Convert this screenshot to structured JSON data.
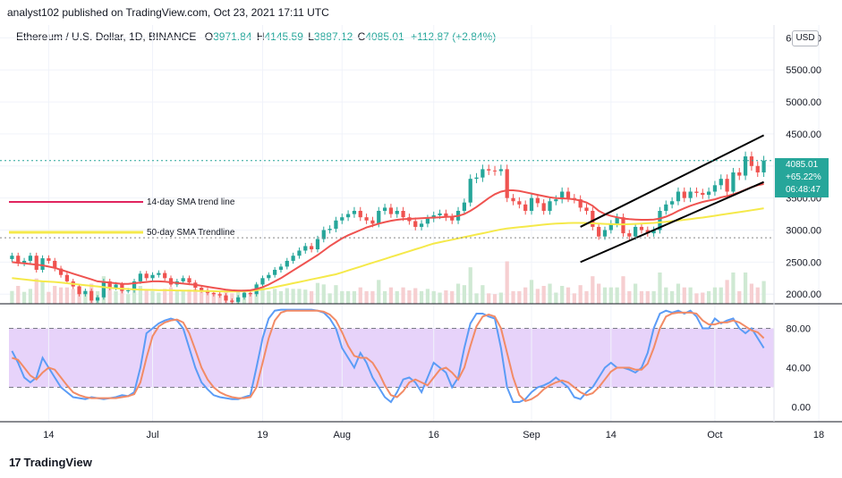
{
  "header": {
    "publish_line": "analyst102 published on TradingView.com, Oct 23, 2021 17:11 UTC"
  },
  "legend": {
    "symbol": "Ethereum / U.S. Dollar, 1D, BINANCE",
    "o_label": "O",
    "o_value": "3971.84",
    "h_label": "H",
    "h_value": "4145.59",
    "l_label": "L",
    "l_value": "3887.12",
    "c_label": "C",
    "c_value": "4085.01",
    "change": "+112.87 (+2.84%)"
  },
  "currency_button": "USD",
  "price_tag": {
    "price": "4085.01",
    "percent": "+65.22%",
    "countdown": "06:48:47"
  },
  "annotations": {
    "sma14": "14-day SMA trend line",
    "sma50": "50-day SMA Trendline"
  },
  "footer": {
    "logo_mark": "17",
    "brand": "TradingView"
  },
  "colors": {
    "up": "#26a69a",
    "down": "#ef5350",
    "sma14": "#ef5350",
    "sma50": "#f5e94a",
    "stoch_k": "#5b9cf6",
    "stoch_d": "#f28b66",
    "stoch_band": "#e7d3fa"
  },
  "chart_data": [
    {
      "type": "candlestick",
      "title": "Ethereum / U.S. Dollar, 1D, BINANCE",
      "ylim": [
        1850,
        6200
      ],
      "y_ticks": [
        2000,
        2500,
        3000,
        3500,
        4000,
        4500,
        5000,
        5500,
        6000
      ],
      "y_tick_labels": [
        "2000.00",
        "2500.00",
        "3000.00",
        "3500.00",
        "4000.00",
        "4500.00",
        "5000.00",
        "5500.00",
        "6000.00"
      ],
      "x_tick_labels": [
        {
          "label": "14",
          "date": "2021-06-14"
        },
        {
          "label": "Jul",
          "date": "2021-07-01"
        },
        {
          "label": "19",
          "date": "2021-07-19"
        },
        {
          "label": "Aug",
          "date": "2021-08-01"
        },
        {
          "label": "16",
          "date": "2021-08-16"
        },
        {
          "label": "Sep",
          "date": "2021-09-01"
        },
        {
          "label": "14",
          "date": "2021-09-14"
        },
        {
          "label": "Oct",
          "date": "2021-10-01"
        },
        {
          "label": "18",
          "date": "2021-10-18"
        }
      ],
      "first_date": "2021-06-08",
      "last_close": 4085.01,
      "close": [
        2600,
        2480,
        2520,
        2600,
        2380,
        2560,
        2520,
        2400,
        2300,
        2200,
        2120,
        2000,
        2050,
        1900,
        1950,
        2200,
        2100,
        2150,
        2050,
        2060,
        2200,
        2320,
        2250,
        2300,
        2330,
        2250,
        2150,
        2200,
        2250,
        2180,
        2100,
        2060,
        2020,
        2000,
        1980,
        1900,
        1880,
        1950,
        2020,
        2000,
        2150,
        2250,
        2300,
        2380,
        2430,
        2520,
        2600,
        2680,
        2750,
        2700,
        2860,
        3000,
        3020,
        3150,
        3200,
        3250,
        3300,
        3200,
        3150,
        3100,
        3300,
        3350,
        3250,
        3300,
        3200,
        3140,
        3050,
        3100,
        3180,
        3230,
        3260,
        3200,
        3150,
        3300,
        3430,
        3800,
        3820,
        3950,
        3930,
        3920,
        3950,
        3500,
        3450,
        3400,
        3300,
        3500,
        3420,
        3300,
        3450,
        3480,
        3600,
        3500,
        3480,
        3350,
        3300,
        3050,
        2900,
        3000,
        3100,
        3200,
        2950,
        2900,
        3050,
        3000,
        2950,
        3000,
        3300,
        3400,
        3450,
        3600,
        3500,
        3600,
        3580,
        3550,
        3600,
        3700,
        3800,
        3600,
        3900,
        3850,
        4150,
        4000,
        3900,
        4085.01
      ],
      "sma14": [
        2500,
        2490,
        2480,
        2470,
        2460,
        2450,
        2430,
        2410,
        2380,
        2350,
        2320,
        2290,
        2260,
        2230,
        2200,
        2190,
        2180,
        2170,
        2160,
        2160,
        2170,
        2180,
        2190,
        2200,
        2200,
        2195,
        2185,
        2175,
        2165,
        2155,
        2145,
        2130,
        2115,
        2100,
        2085,
        2070,
        2060,
        2055,
        2055,
        2060,
        2080,
        2110,
        2150,
        2200,
        2250,
        2310,
        2370,
        2430,
        2490,
        2550,
        2610,
        2680,
        2750,
        2810,
        2870,
        2920,
        2960,
        3000,
        3040,
        3070,
        3100,
        3125,
        3145,
        3160,
        3170,
        3175,
        3180,
        3185,
        3190,
        3195,
        3200,
        3205,
        3210,
        3220,
        3250,
        3300,
        3360,
        3430,
        3500,
        3560,
        3600,
        3620,
        3620,
        3610,
        3590,
        3570,
        3550,
        3530,
        3510,
        3500,
        3495,
        3490,
        3480,
        3460,
        3430,
        3380,
        3300,
        3250,
        3220,
        3200,
        3180,
        3170,
        3165,
        3160,
        3160,
        3165,
        3180,
        3210,
        3250,
        3300,
        3340,
        3380,
        3410,
        3440,
        3460,
        3480,
        3510,
        3530,
        3560,
        3590,
        3630,
        3670,
        3700,
        3720
      ],
      "sma50": [
        2250,
        2240,
        2230,
        2220,
        2210,
        2200,
        2195,
        2190,
        2180,
        2170,
        2160,
        2150,
        2140,
        2130,
        2120,
        2110,
        2100,
        2090,
        2085,
        2080,
        2075,
        2070,
        2068,
        2066,
        2064,
        2062,
        2060,
        2058,
        2056,
        2054,
        2052,
        2050,
        2048,
        2046,
        2044,
        2042,
        2042,
        2044,
        2046,
        2050,
        2060,
        2075,
        2090,
        2110,
        2130,
        2150,
        2170,
        2190,
        2210,
        2230,
        2250,
        2270,
        2290,
        2310,
        2340,
        2370,
        2400,
        2430,
        2460,
        2490,
        2520,
        2550,
        2580,
        2610,
        2640,
        2670,
        2700,
        2730,
        2760,
        2790,
        2810,
        2830,
        2850,
        2870,
        2890,
        2910,
        2930,
        2950,
        2970,
        2990,
        3010,
        3025,
        3035,
        3045,
        3055,
        3065,
        3075,
        3085,
        3095,
        3100,
        3105,
        3110,
        3112,
        3112,
        3110,
        3105,
        3100,
        3096,
        3092,
        3090,
        3090,
        3092,
        3096,
        3100,
        3106,
        3112,
        3120,
        3130,
        3140,
        3150,
        3160,
        3172,
        3184,
        3196,
        3210,
        3224,
        3238,
        3252,
        3266,
        3280,
        3295,
        3310,
        3325,
        3340
      ],
      "trendlines": [
        {
          "from": {
            "bar": 93,
            "price": 3050
          },
          "to": {
            "bar": 123,
            "price": 4480
          }
        },
        {
          "from": {
            "bar": 93,
            "price": 2500
          },
          "to": {
            "bar": 123,
            "price": 3750
          }
        }
      ],
      "dotted_lines": [
        4085.01,
        2880
      ]
    },
    {
      "type": "line",
      "title": "Stochastic",
      "ylim": [
        -15,
        105
      ],
      "y_ticks": [
        0,
        40,
        80
      ],
      "y_tick_labels": [
        "0.00",
        "40.00",
        "80.00"
      ],
      "band": [
        20,
        80
      ],
      "series": [
        {
          "name": "",
          "color": "#5b9cf6",
          "values": [
            57,
            45,
            30,
            25,
            30,
            50,
            40,
            30,
            20,
            15,
            10,
            9,
            8,
            10,
            9,
            8,
            9,
            10,
            12,
            11,
            15,
            40,
            75,
            80,
            85,
            88,
            90,
            88,
            80,
            60,
            40,
            25,
            18,
            12,
            10,
            9,
            8,
            8,
            10,
            12,
            40,
            70,
            90,
            98,
            99,
            99,
            99,
            99,
            99,
            99,
            98,
            96,
            90,
            80,
            60,
            50,
            40,
            55,
            45,
            30,
            20,
            10,
            5,
            15,
            28,
            30,
            25,
            15,
            30,
            45,
            40,
            35,
            20,
            30,
            60,
            85,
            95,
            95,
            92,
            90,
            60,
            20,
            5,
            5,
            8,
            15,
            20,
            22,
            25,
            30,
            25,
            20,
            10,
            8,
            15,
            20,
            30,
            40,
            45,
            40,
            40,
            38,
            35,
            40,
            55,
            80,
            95,
            98,
            96,
            98,
            95,
            98,
            92,
            80,
            80,
            90,
            85,
            88,
            90,
            80,
            75,
            80,
            70,
            60
          ]
        },
        {
          "name": "",
          "color": "#f28b66",
          "values": [
            50,
            48,
            40,
            32,
            28,
            35,
            40,
            38,
            30,
            22,
            15,
            12,
            10,
            9,
            9,
            9,
            9,
            9,
            10,
            11,
            13,
            25,
            50,
            72,
            82,
            86,
            88,
            89,
            86,
            75,
            58,
            40,
            28,
            20,
            15,
            12,
            10,
            9,
            9,
            10,
            20,
            45,
            70,
            88,
            96,
            98,
            98,
            98,
            98,
            98,
            98,
            97,
            94,
            88,
            76,
            62,
            52,
            50,
            50,
            45,
            35,
            22,
            12,
            10,
            16,
            25,
            28,
            25,
            22,
            30,
            38,
            40,
            35,
            28,
            40,
            62,
            82,
            92,
            94,
            92,
            80,
            55,
            30,
            12,
            6,
            8,
            12,
            18,
            22,
            25,
            27,
            25,
            20,
            15,
            12,
            14,
            20,
            28,
            36,
            40,
            40,
            40,
            38,
            38,
            44,
            60,
            80,
            92,
            95,
            96,
            96,
            96,
            95,
            88,
            84,
            84,
            86,
            86,
            88,
            86,
            82,
            78,
            76,
            70
          ]
        }
      ]
    }
  ]
}
